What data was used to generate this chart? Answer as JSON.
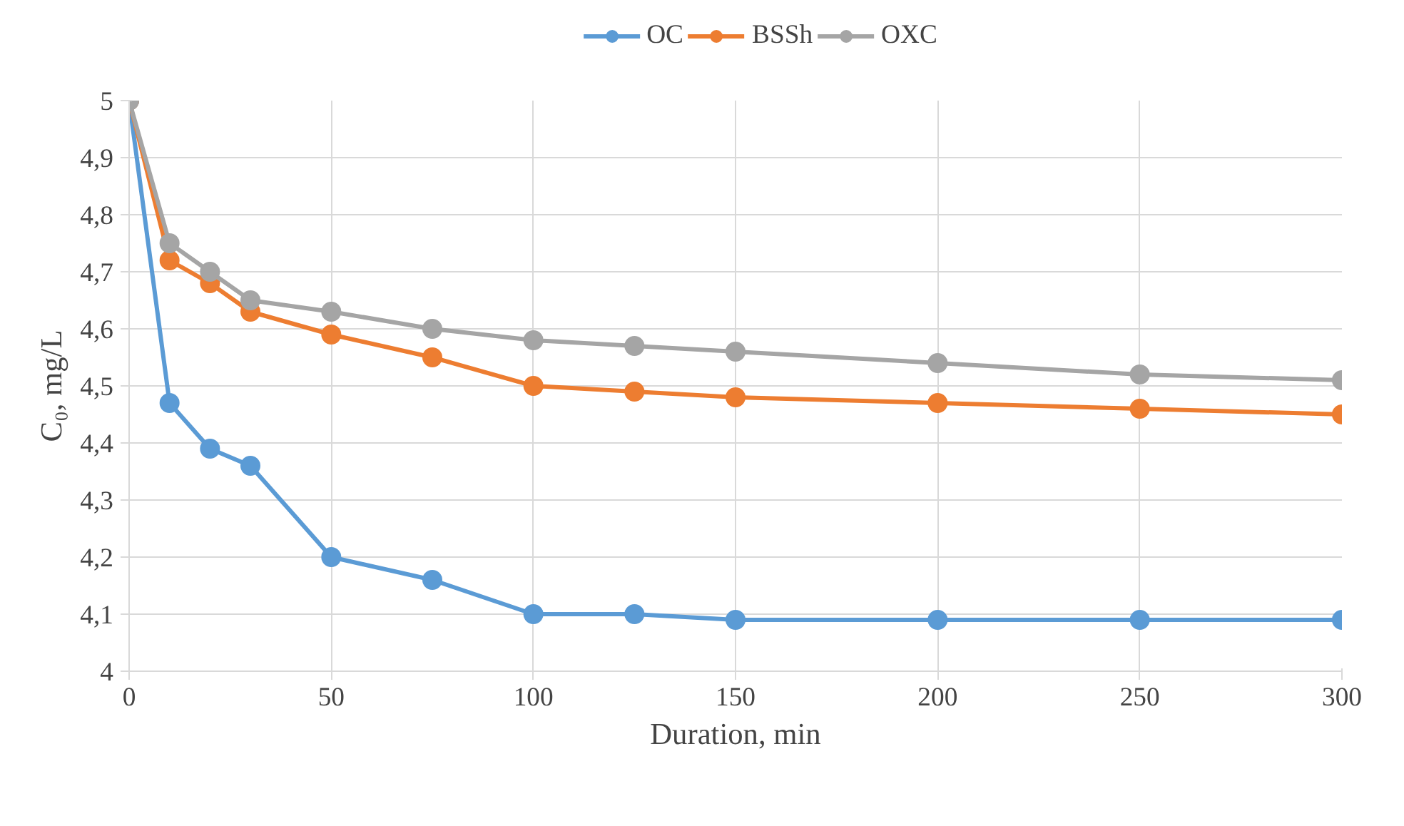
{
  "chart_data": {
    "type": "line",
    "xlabel": "Duration, min",
    "ylabel": "C₀, mg/L",
    "x": [
      0,
      10,
      20,
      30,
      50,
      75,
      100,
      125,
      150,
      200,
      250,
      300
    ],
    "series": [
      {
        "name": "OC",
        "color": "#5b9bd5",
        "values": [
          5,
          4.47,
          4.39,
          4.36,
          4.2,
          4.16,
          4.1,
          4.1,
          4.09,
          4.09,
          4.09,
          4.09
        ]
      },
      {
        "name": "BSSh",
        "color": "#ed7d31",
        "values": [
          5,
          4.72,
          4.68,
          4.63,
          4.59,
          4.55,
          4.5,
          4.49,
          4.48,
          4.47,
          4.46,
          4.45
        ]
      },
      {
        "name": "OXC",
        "color": "#a5a5a5",
        "values": [
          5,
          4.75,
          4.7,
          4.65,
          4.63,
          4.6,
          4.58,
          4.57,
          4.56,
          4.54,
          4.52,
          4.51
        ]
      }
    ],
    "xlim": [
      0,
      300
    ],
    "xticks": [
      0,
      50,
      100,
      150,
      200,
      250,
      300
    ],
    "ylim": [
      4,
      5
    ],
    "yticks": [
      4,
      {
        "value": 4.1,
        "label": "4,1"
      },
      {
        "value": 4.2,
        "label": "4,2"
      },
      {
        "value": 4.3,
        "label": "4,3"
      },
      {
        "value": 4.4,
        "label": "4,4"
      },
      {
        "value": 4.5,
        "label": "4,5"
      },
      {
        "value": 4.6,
        "label": "4,6"
      },
      {
        "value": 4.7,
        "label": "4,7"
      },
      {
        "value": 4.8,
        "label": "4,8"
      },
      {
        "value": 4.9,
        "label": "4,9"
      },
      5
    ],
    "grid": true,
    "legend": "top",
    "marker": "circle",
    "line_style": "solid"
  }
}
